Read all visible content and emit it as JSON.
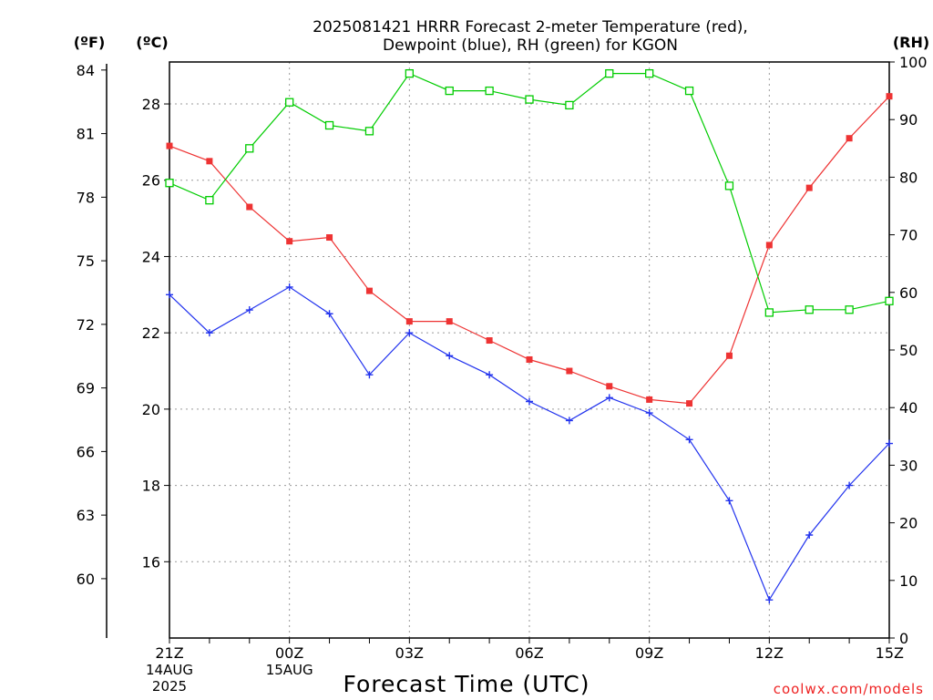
{
  "title_line1": "2025081421 HRRR Forecast 2-meter Temperature (red),",
  "title_line2": "Dewpoint (blue), RH (green) for KGON",
  "units": {
    "fahrenheit": "(ºF)",
    "celsius": "(ºC)",
    "rh": "(RH)"
  },
  "credit": "coolwx.com/models",
  "colors": {
    "temperature": "#ee3333",
    "dewpoint": "#2233ee",
    "rh": "#00cc00",
    "credit": "#ee2222",
    "grid": "#9a9a9a"
  },
  "chart_data": {
    "type": "line",
    "xlabel": "Forecast Time (UTC)",
    "x": [
      "21Z",
      "22Z",
      "23Z",
      "00Z",
      "01Z",
      "02Z",
      "03Z",
      "04Z",
      "05Z",
      "06Z",
      "07Z",
      "08Z",
      "09Z",
      "10Z",
      "11Z",
      "12Z",
      "13Z",
      "14Z",
      "15Z"
    ],
    "x_tick_labels": [
      {
        "x": "21Z",
        "lines": [
          "21Z",
          "14AUG",
          "2025"
        ]
      },
      {
        "x": "00Z",
        "lines": [
          "00Z",
          "15AUG"
        ]
      },
      {
        "x": "03Z",
        "lines": [
          "03Z"
        ]
      },
      {
        "x": "06Z",
        "lines": [
          "06Z"
        ]
      },
      {
        "x": "09Z",
        "lines": [
          "09Z"
        ]
      },
      {
        "x": "12Z",
        "lines": [
          "12Z"
        ]
      },
      {
        "x": "15Z",
        "lines": [
          "15Z"
        ]
      }
    ],
    "axes": {
      "celsius": {
        "range": [
          14.0,
          29.1
        ],
        "ticks": [
          16,
          18,
          20,
          22,
          24,
          26,
          28
        ]
      },
      "fahrenheit": {
        "ticks": [
          60,
          63,
          66,
          69,
          72,
          75,
          78,
          81,
          84
        ]
      },
      "rh": {
        "range": [
          0,
          100
        ],
        "ticks": [
          0,
          10,
          20,
          30,
          40,
          50,
          60,
          70,
          80,
          90,
          100
        ]
      }
    },
    "grid": true,
    "series": [
      {
        "key": "temperature",
        "axis": "celsius",
        "marker": "filled-square",
        "values": [
          26.9,
          26.5,
          25.3,
          24.4,
          24.5,
          23.1,
          22.3,
          22.3,
          21.8,
          21.3,
          21.0,
          20.6,
          20.25,
          20.15,
          21.4,
          24.3,
          25.8,
          27.1,
          28.2
        ]
      },
      {
        "key": "dewpoint",
        "axis": "celsius",
        "marker": "plus",
        "values": [
          23.0,
          22.0,
          22.6,
          23.2,
          22.5,
          20.9,
          22.0,
          21.4,
          20.9,
          20.2,
          19.7,
          20.3,
          19.9,
          19.2,
          17.6,
          15.0,
          16.7,
          18.0,
          19.1
        ]
      },
      {
        "key": "rh",
        "axis": "rh",
        "marker": "open-square",
        "values": [
          79,
          76,
          85,
          93,
          89,
          88,
          98,
          95,
          95,
          93.5,
          92.5,
          98,
          98,
          95,
          78.5,
          56.5,
          57,
          57,
          58.5
        ]
      }
    ]
  }
}
